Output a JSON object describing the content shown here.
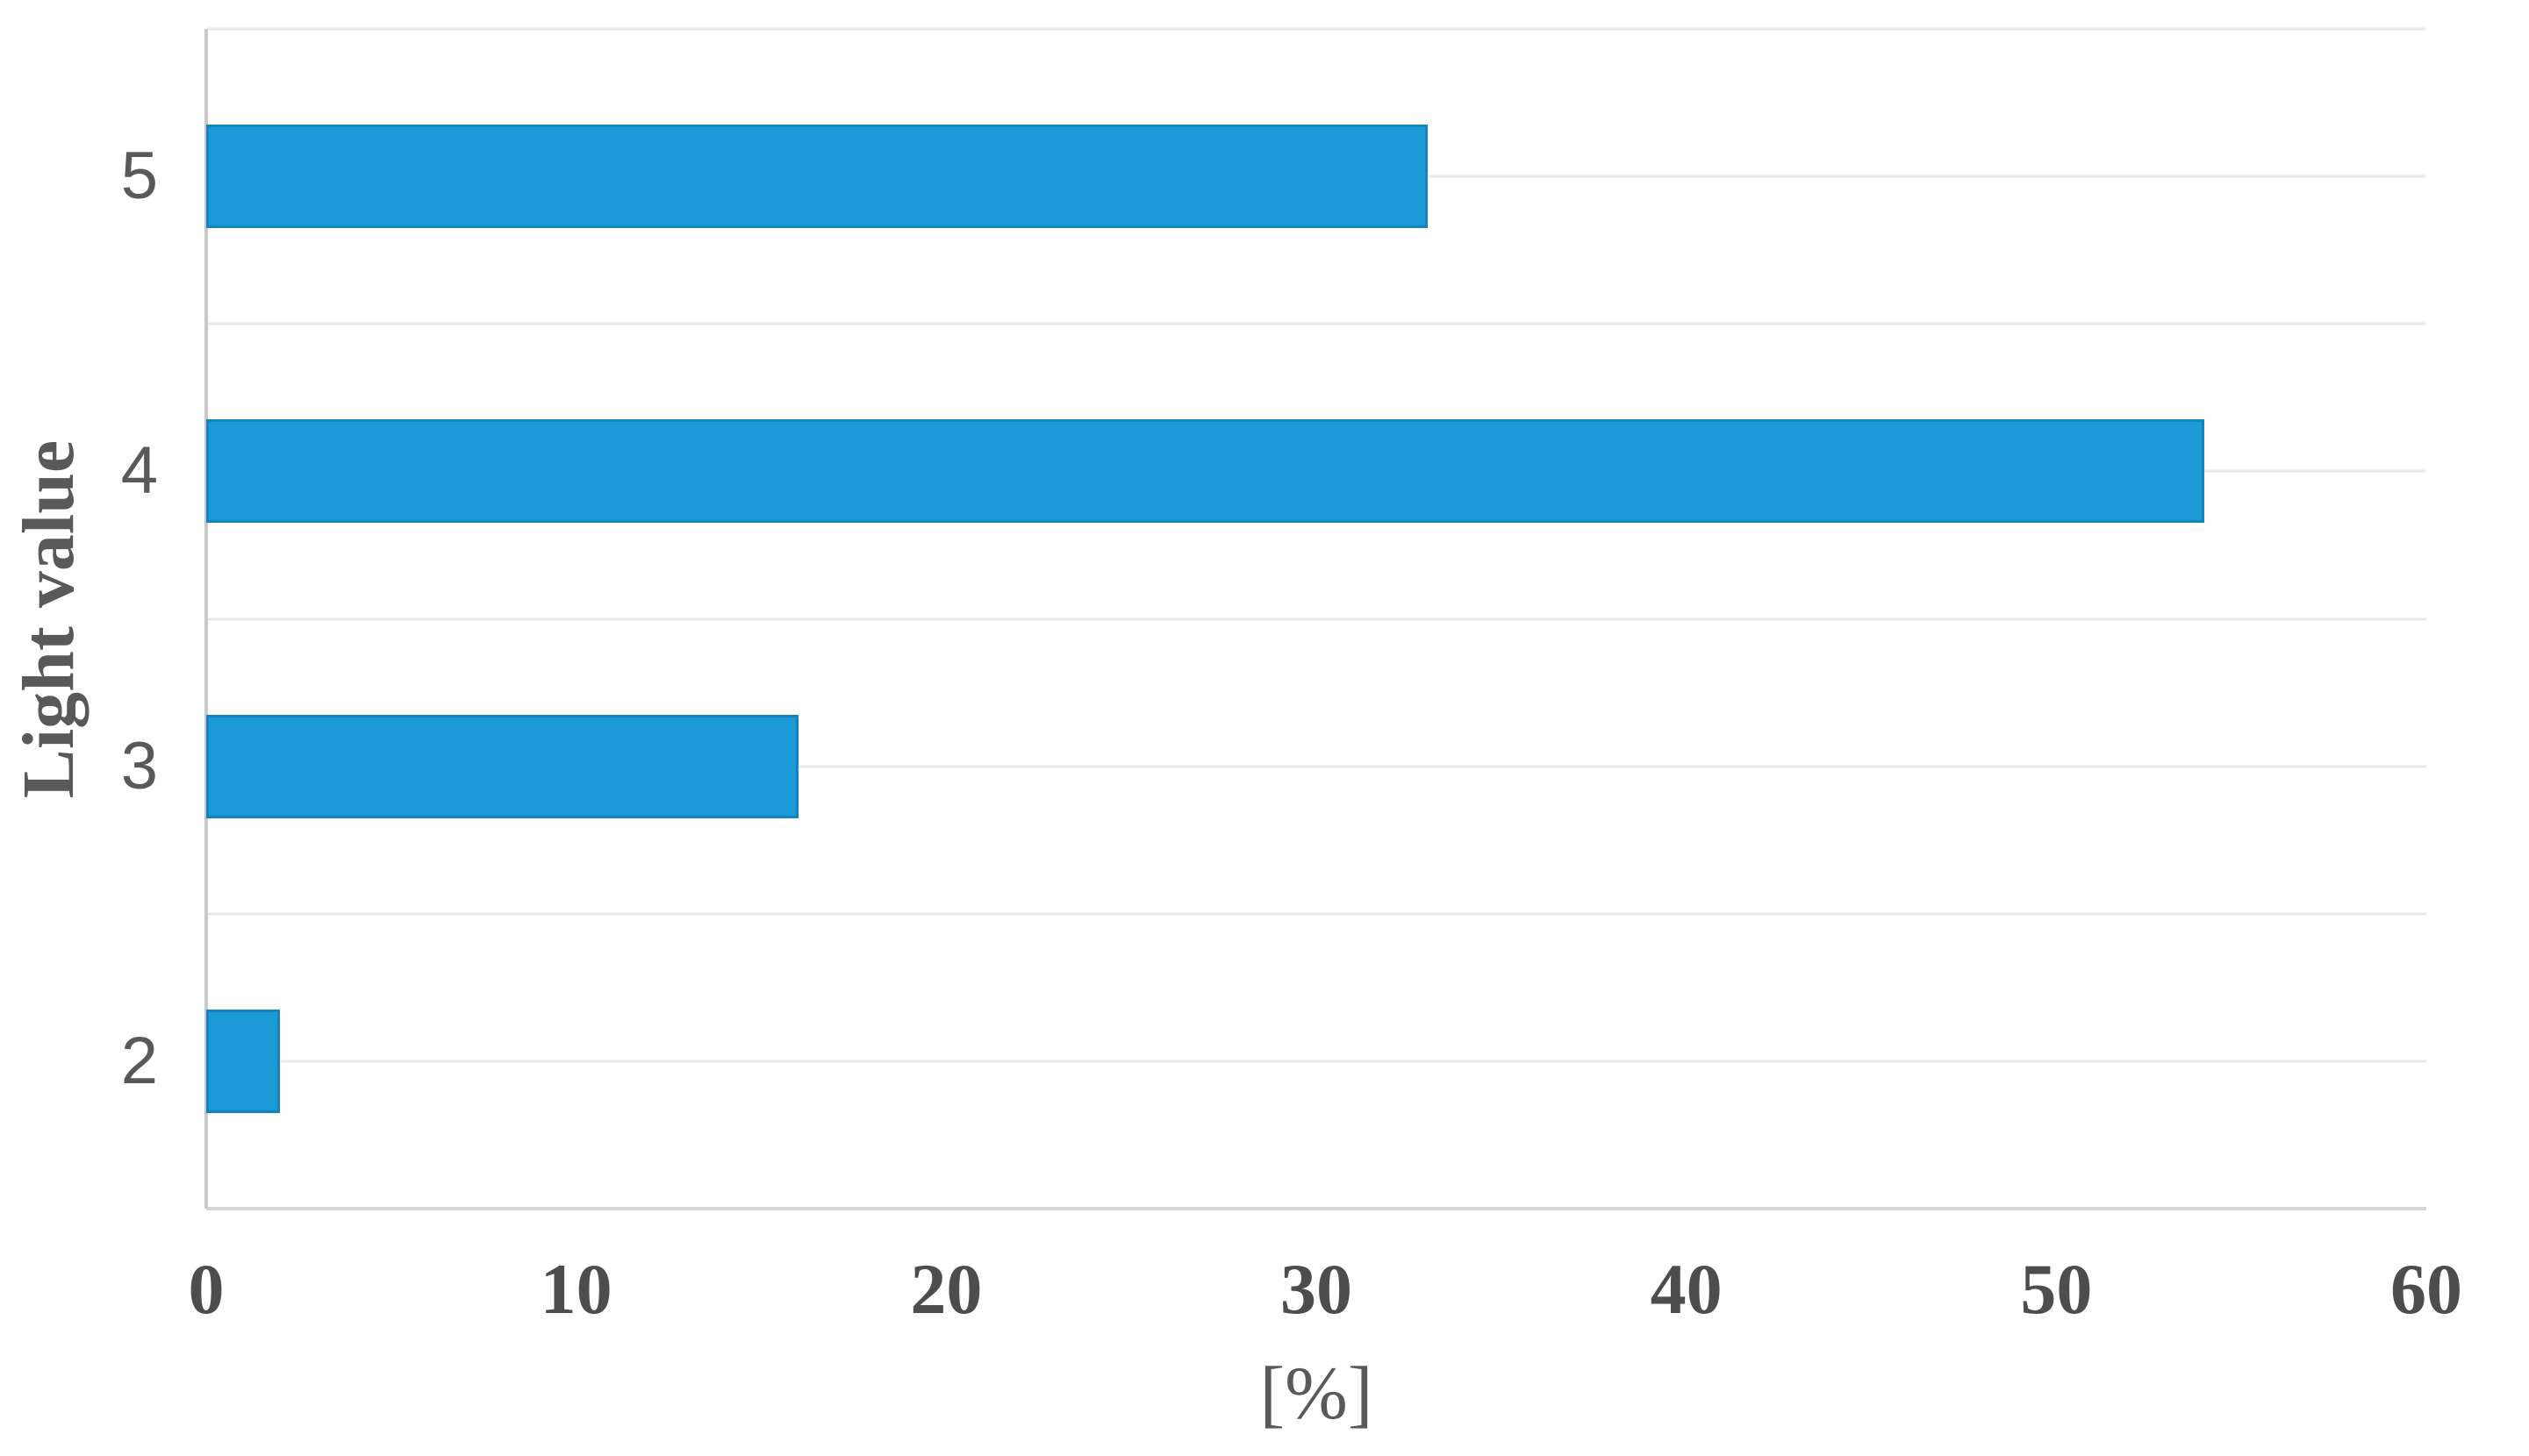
{
  "chart_data": {
    "type": "bar",
    "orientation": "horizontal",
    "title": "",
    "categories": [
      "5",
      "4",
      "3",
      "2"
    ],
    "values": [
      33,
      54,
      16,
      2
    ],
    "xlabel": "[%]",
    "ylabel": "Light value",
    "xlim": [
      0,
      60
    ],
    "xticks": [
      0,
      10,
      20,
      30,
      40,
      50,
      60
    ],
    "grid": "horizontal",
    "legend": "none",
    "bar_color": "#1c9ad7",
    "gridline_color": "#e9e9e9",
    "axis_line_color": "#c9c9c9",
    "label_color": "#595959"
  }
}
